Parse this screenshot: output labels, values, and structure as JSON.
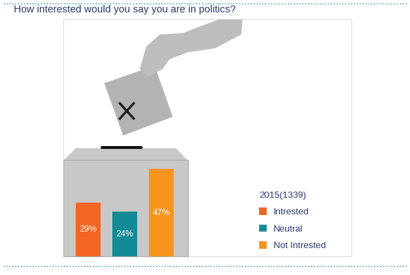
{
  "chart_data": {
    "type": "bar",
    "title": "How interested would you say you are in politics?",
    "categories": [
      "Intrested",
      "Neutral",
      "Not Intrested"
    ],
    "values": [
      29,
      24,
      47
    ],
    "value_labels": [
      "29%",
      "24%",
      "47%"
    ],
    "colors": [
      "#f26522",
      "#138a96",
      "#f7941d"
    ],
    "ylim": [
      0,
      52
    ],
    "data_labels": true,
    "tick_labels": false,
    "grid": false,
    "legend": "lower right",
    "legend_title": "2015(1339)"
  }
}
